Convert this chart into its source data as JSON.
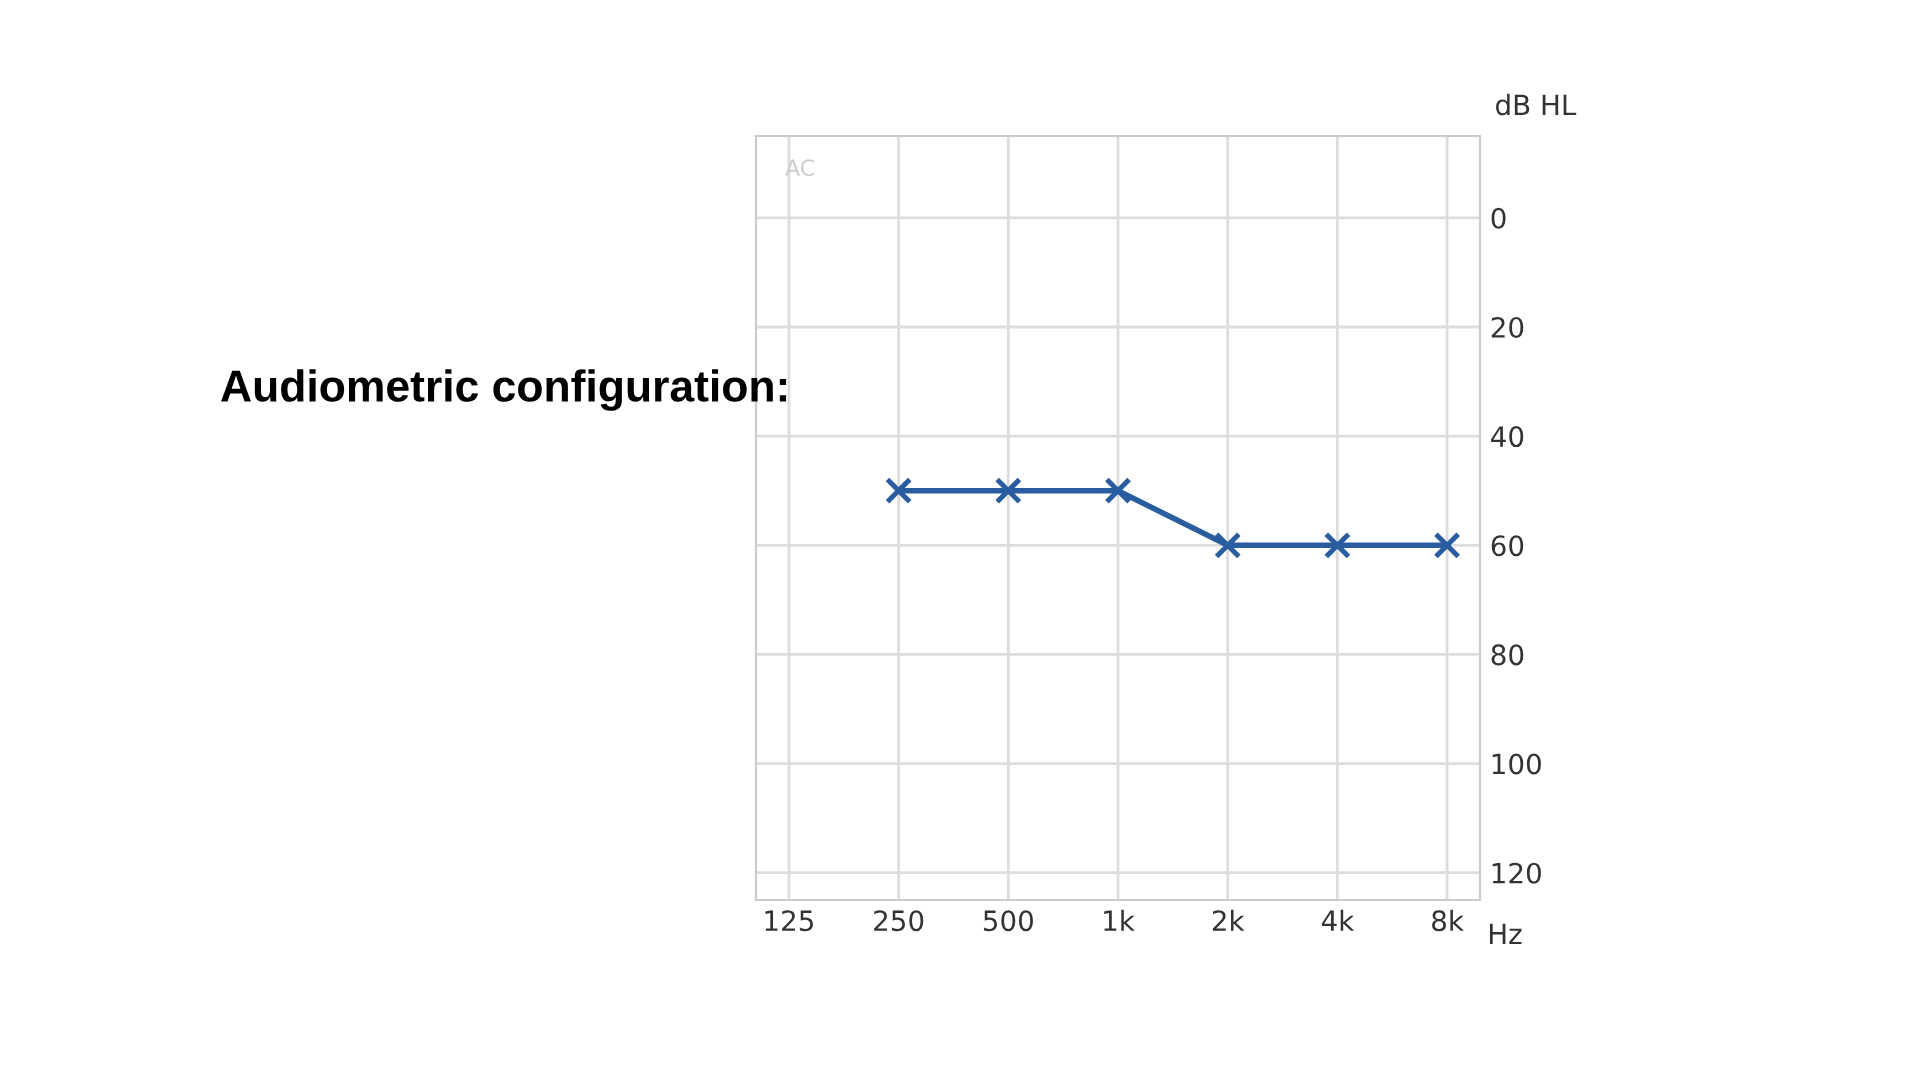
{
  "chart_data": {
    "type": "line",
    "title": "Audiometric configuration:",
    "xlabel": "Hz",
    "ylabel": "dB HL",
    "annotations": [
      "AC"
    ],
    "categories": [
      "125",
      "250",
      "500",
      "1k",
      "2k",
      "4k",
      "8k"
    ],
    "series": [
      {
        "color": "#2a5d9f",
        "values": [
          null,
          50,
          50,
          50,
          60,
          60,
          60
        ]
      }
    ],
    "ylim": [
      125,
      -15
    ],
    "yticks": [
      0,
      20,
      40,
      60,
      80,
      100,
      120
    ],
    "grid": true,
    "marker": "cross",
    "line_style": "solid",
    "legend": false
  }
}
